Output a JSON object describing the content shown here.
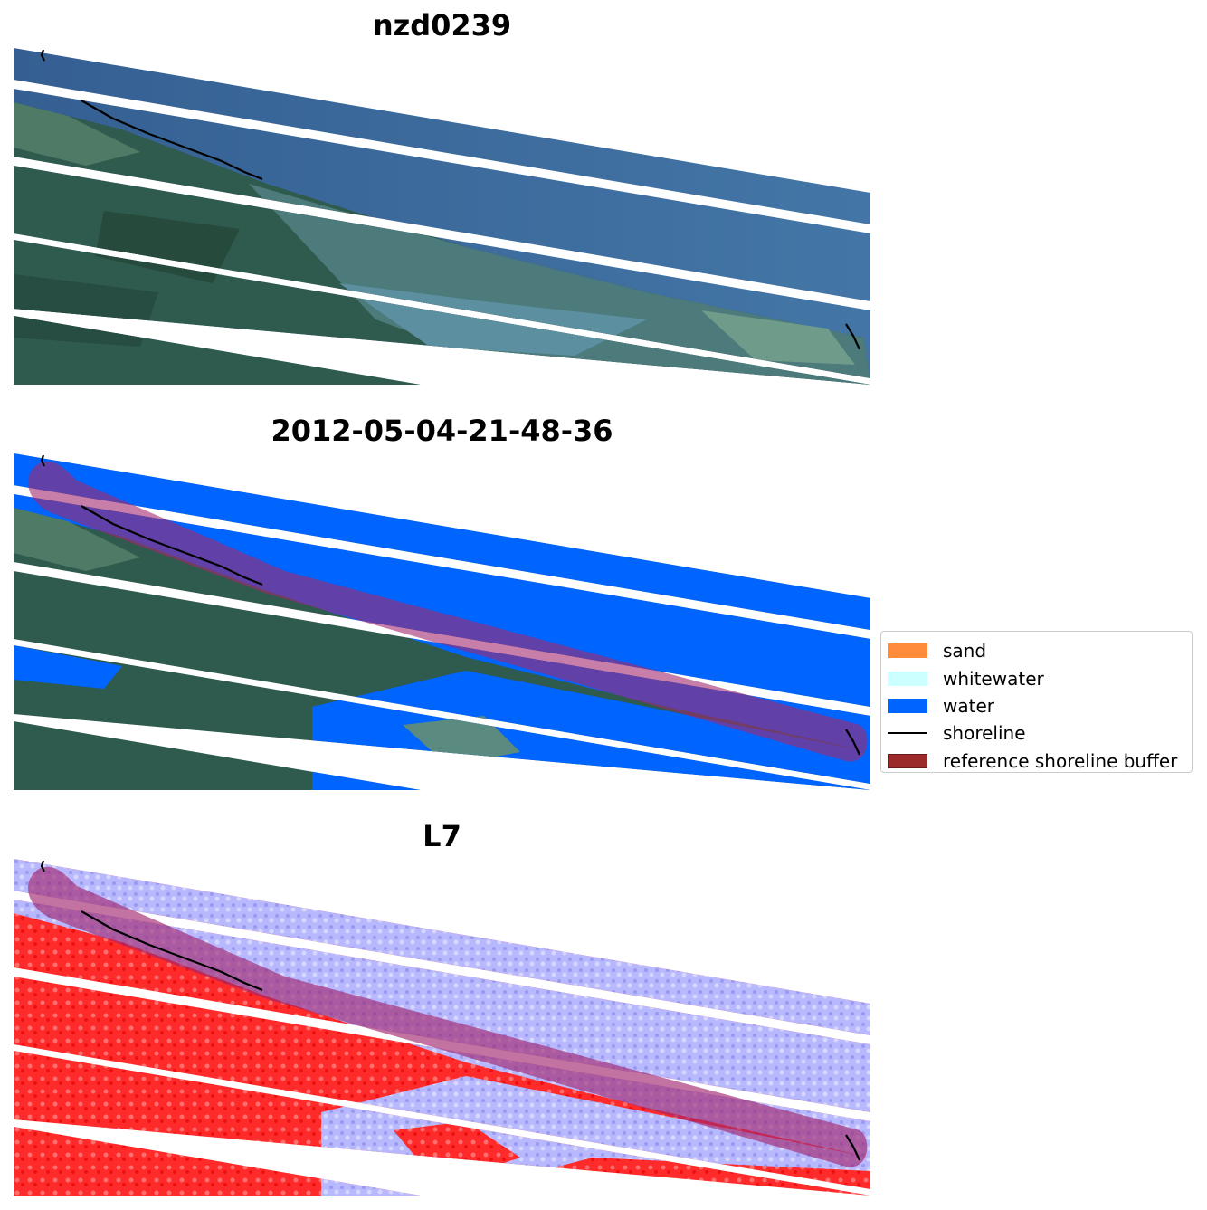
{
  "panels": [
    {
      "title": "nzd0239"
    },
    {
      "title": "2012-05-04-21-48-36"
    },
    {
      "title": "L7"
    }
  ],
  "legend": {
    "items": [
      {
        "label": "sand",
        "kind": "patch",
        "color": "#ff8c3a"
      },
      {
        "label": "whitewater",
        "kind": "patch",
        "color": "#ccffff"
      },
      {
        "label": "water",
        "kind": "patch",
        "color": "#0064ff"
      },
      {
        "label": "shoreline",
        "kind": "line",
        "color": "#000000"
      },
      {
        "label": "reference shoreline buffer",
        "kind": "patch",
        "color": "#9b2a2a"
      }
    ]
  },
  "colors": {
    "sea": "#3d6e9e",
    "land": "#2e5a4c",
    "water_class": "#0064ff",
    "mndwi_positive": "#b3b3ff",
    "mndwi_negative": "#ff2a2a",
    "buffer": "#a1286e"
  }
}
